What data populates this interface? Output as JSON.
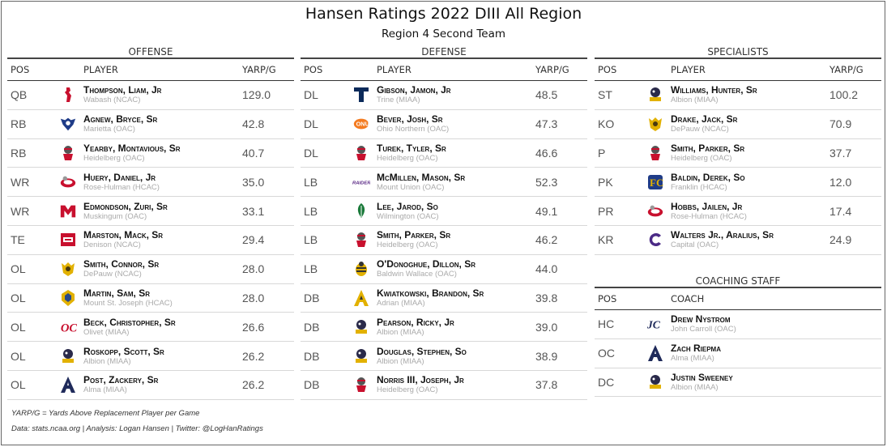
{
  "title": "Hansen Ratings 2022 DIII All Region",
  "subtitle": "Region 4 Second Team",
  "headers": {
    "pos": "POS",
    "player": "PLAYER",
    "value": "YARP/G",
    "coach": "COACH"
  },
  "offense": {
    "title": "OFFENSE",
    "rows": [
      {
        "pos": "QB",
        "name": "Thompson, Liam, Jr",
        "school": "Wabash (NCAC)",
        "value": "129.0",
        "logo": "wabash-logo"
      },
      {
        "pos": "RB",
        "name": "Agnew, Bryce, Sr",
        "school": "Marietta (OAC)",
        "value": "42.8",
        "logo": "marietta-logo"
      },
      {
        "pos": "RB",
        "name": "Yearby, Montavious, Sr",
        "school": "Heidelberg (OAC)",
        "value": "40.7",
        "logo": "heidelberg-logo"
      },
      {
        "pos": "WR",
        "name": "Huery, Daniel, Jr",
        "school": "Rose-Hulman (HCAC)",
        "value": "35.0",
        "logo": "rose-hulman-logo"
      },
      {
        "pos": "WR",
        "name": "Edmondson, Zuri, Sr",
        "school": "Muskingum (OAC)",
        "value": "33.1",
        "logo": "muskingum-logo"
      },
      {
        "pos": "TE",
        "name": "Marston, Mack, Sr",
        "school": "Denison (NCAC)",
        "value": "29.4",
        "logo": "denison-logo"
      },
      {
        "pos": "OL",
        "name": "Smith, Connor, Sr",
        "school": "DePauw (NCAC)",
        "value": "28.0",
        "logo": "depauw-logo"
      },
      {
        "pos": "OL",
        "name": "Martin, Sam, Sr",
        "school": "Mount St. Joseph (HCAC)",
        "value": "28.0",
        "logo": "mount-st-joseph-logo"
      },
      {
        "pos": "OL",
        "name": "Beck, Christopher, Sr",
        "school": "Olivet (MIAA)",
        "value": "26.6",
        "logo": "olivet-logo"
      },
      {
        "pos": "OL",
        "name": "Roskopp, Scott, Sr",
        "school": "Albion (MIAA)",
        "value": "26.2",
        "logo": "albion-logo"
      },
      {
        "pos": "OL",
        "name": "Post, Zackery, Sr",
        "school": "Alma (MIAA)",
        "value": "26.2",
        "logo": "alma-logo"
      }
    ]
  },
  "defense": {
    "title": "DEFENSE",
    "rows": [
      {
        "pos": "DL",
        "name": "Gibson, Jamon, Jr",
        "school": "Trine (MIAA)",
        "value": "48.5",
        "logo": "trine-logo"
      },
      {
        "pos": "DL",
        "name": "Bever, Josh, Sr",
        "school": "Ohio Northern (OAC)",
        "value": "47.3",
        "logo": "ohio-northern-logo"
      },
      {
        "pos": "DL",
        "name": "Turek, Tyler, Sr",
        "school": "Heidelberg (OAC)",
        "value": "46.6",
        "logo": "heidelberg-logo"
      },
      {
        "pos": "LB",
        "name": "McMillen, Mason, Sr",
        "school": "Mount Union (OAC)",
        "value": "52.3",
        "logo": "mount-union-logo"
      },
      {
        "pos": "LB",
        "name": "Lee, Jarod, So",
        "school": "Wilmington (OAC)",
        "value": "49.1",
        "logo": "wilmington-logo"
      },
      {
        "pos": "LB",
        "name": "Smith, Parker, Sr",
        "school": "Heidelberg (OAC)",
        "value": "46.2",
        "logo": "heidelberg-logo"
      },
      {
        "pos": "LB",
        "name": "O'Donoghue, Dillon, Sr",
        "school": "Baldwin Wallace (OAC)",
        "value": "44.0",
        "logo": "baldwin-wallace-logo"
      },
      {
        "pos": "DB",
        "name": "Kwiatkowski, Brandon, Sr",
        "school": "Adrian (MIAA)",
        "value": "39.8",
        "logo": "adrian-logo"
      },
      {
        "pos": "DB",
        "name": "Pearson, Ricky, Jr",
        "school": "Albion (MIAA)",
        "value": "39.0",
        "logo": "albion-logo"
      },
      {
        "pos": "DB",
        "name": "Douglas, Stephen, So",
        "school": "Albion (MIAA)",
        "value": "38.9",
        "logo": "albion-logo"
      },
      {
        "pos": "DB",
        "name": "Norris III, Joseph, Jr",
        "school": "Heidelberg (OAC)",
        "value": "37.8",
        "logo": "heidelberg-logo"
      }
    ]
  },
  "specialists": {
    "title": "SPECIALISTS",
    "rows": [
      {
        "pos": "ST",
        "name": "Williams, Hunter, Sr",
        "school": "Albion (MIAA)",
        "value": "100.2",
        "logo": "albion-logo"
      },
      {
        "pos": "KO",
        "name": "Drake, Jack, Sr",
        "school": "DePauw (NCAC)",
        "value": "70.9",
        "logo": "depauw-logo"
      },
      {
        "pos": "P",
        "name": "Smith, Parker, Sr",
        "school": "Heidelberg (OAC)",
        "value": "37.7",
        "logo": "heidelberg-logo"
      },
      {
        "pos": "PK",
        "name": "Baldin, Derek, So",
        "school": "Franklin (HCAC)",
        "value": "12.0",
        "logo": "franklin-logo"
      },
      {
        "pos": "PR",
        "name": "Hobbs, Jailen, Jr",
        "school": "Rose-Hulman (HCAC)",
        "value": "17.4",
        "logo": "rose-hulman-logo"
      },
      {
        "pos": "KR",
        "name": "Walters Jr., Aralius, Sr",
        "school": "Capital (OAC)",
        "value": "24.9",
        "logo": "capital-logo"
      }
    ]
  },
  "coaching": {
    "title": "COACHING STAFF",
    "rows": [
      {
        "pos": "HC",
        "name": "Drew Nystrom",
        "school": "John Carroll (OAC)",
        "logo": "john-carroll-logo"
      },
      {
        "pos": "OC",
        "name": "Zach Riepma",
        "school": "Alma (MIAA)",
        "logo": "alma-logo"
      },
      {
        "pos": "DC",
        "name": "Justin Sweeney",
        "school": "Albion (MIAA)",
        "logo": "albion-logo"
      }
    ]
  },
  "footnotes": {
    "definition": "YARP/G = Yards Above Replacement Player per Game",
    "credits": "Data: stats.ncaa.org | Analysis: Logan Hansen | Twitter: @LogHanRatings"
  }
}
